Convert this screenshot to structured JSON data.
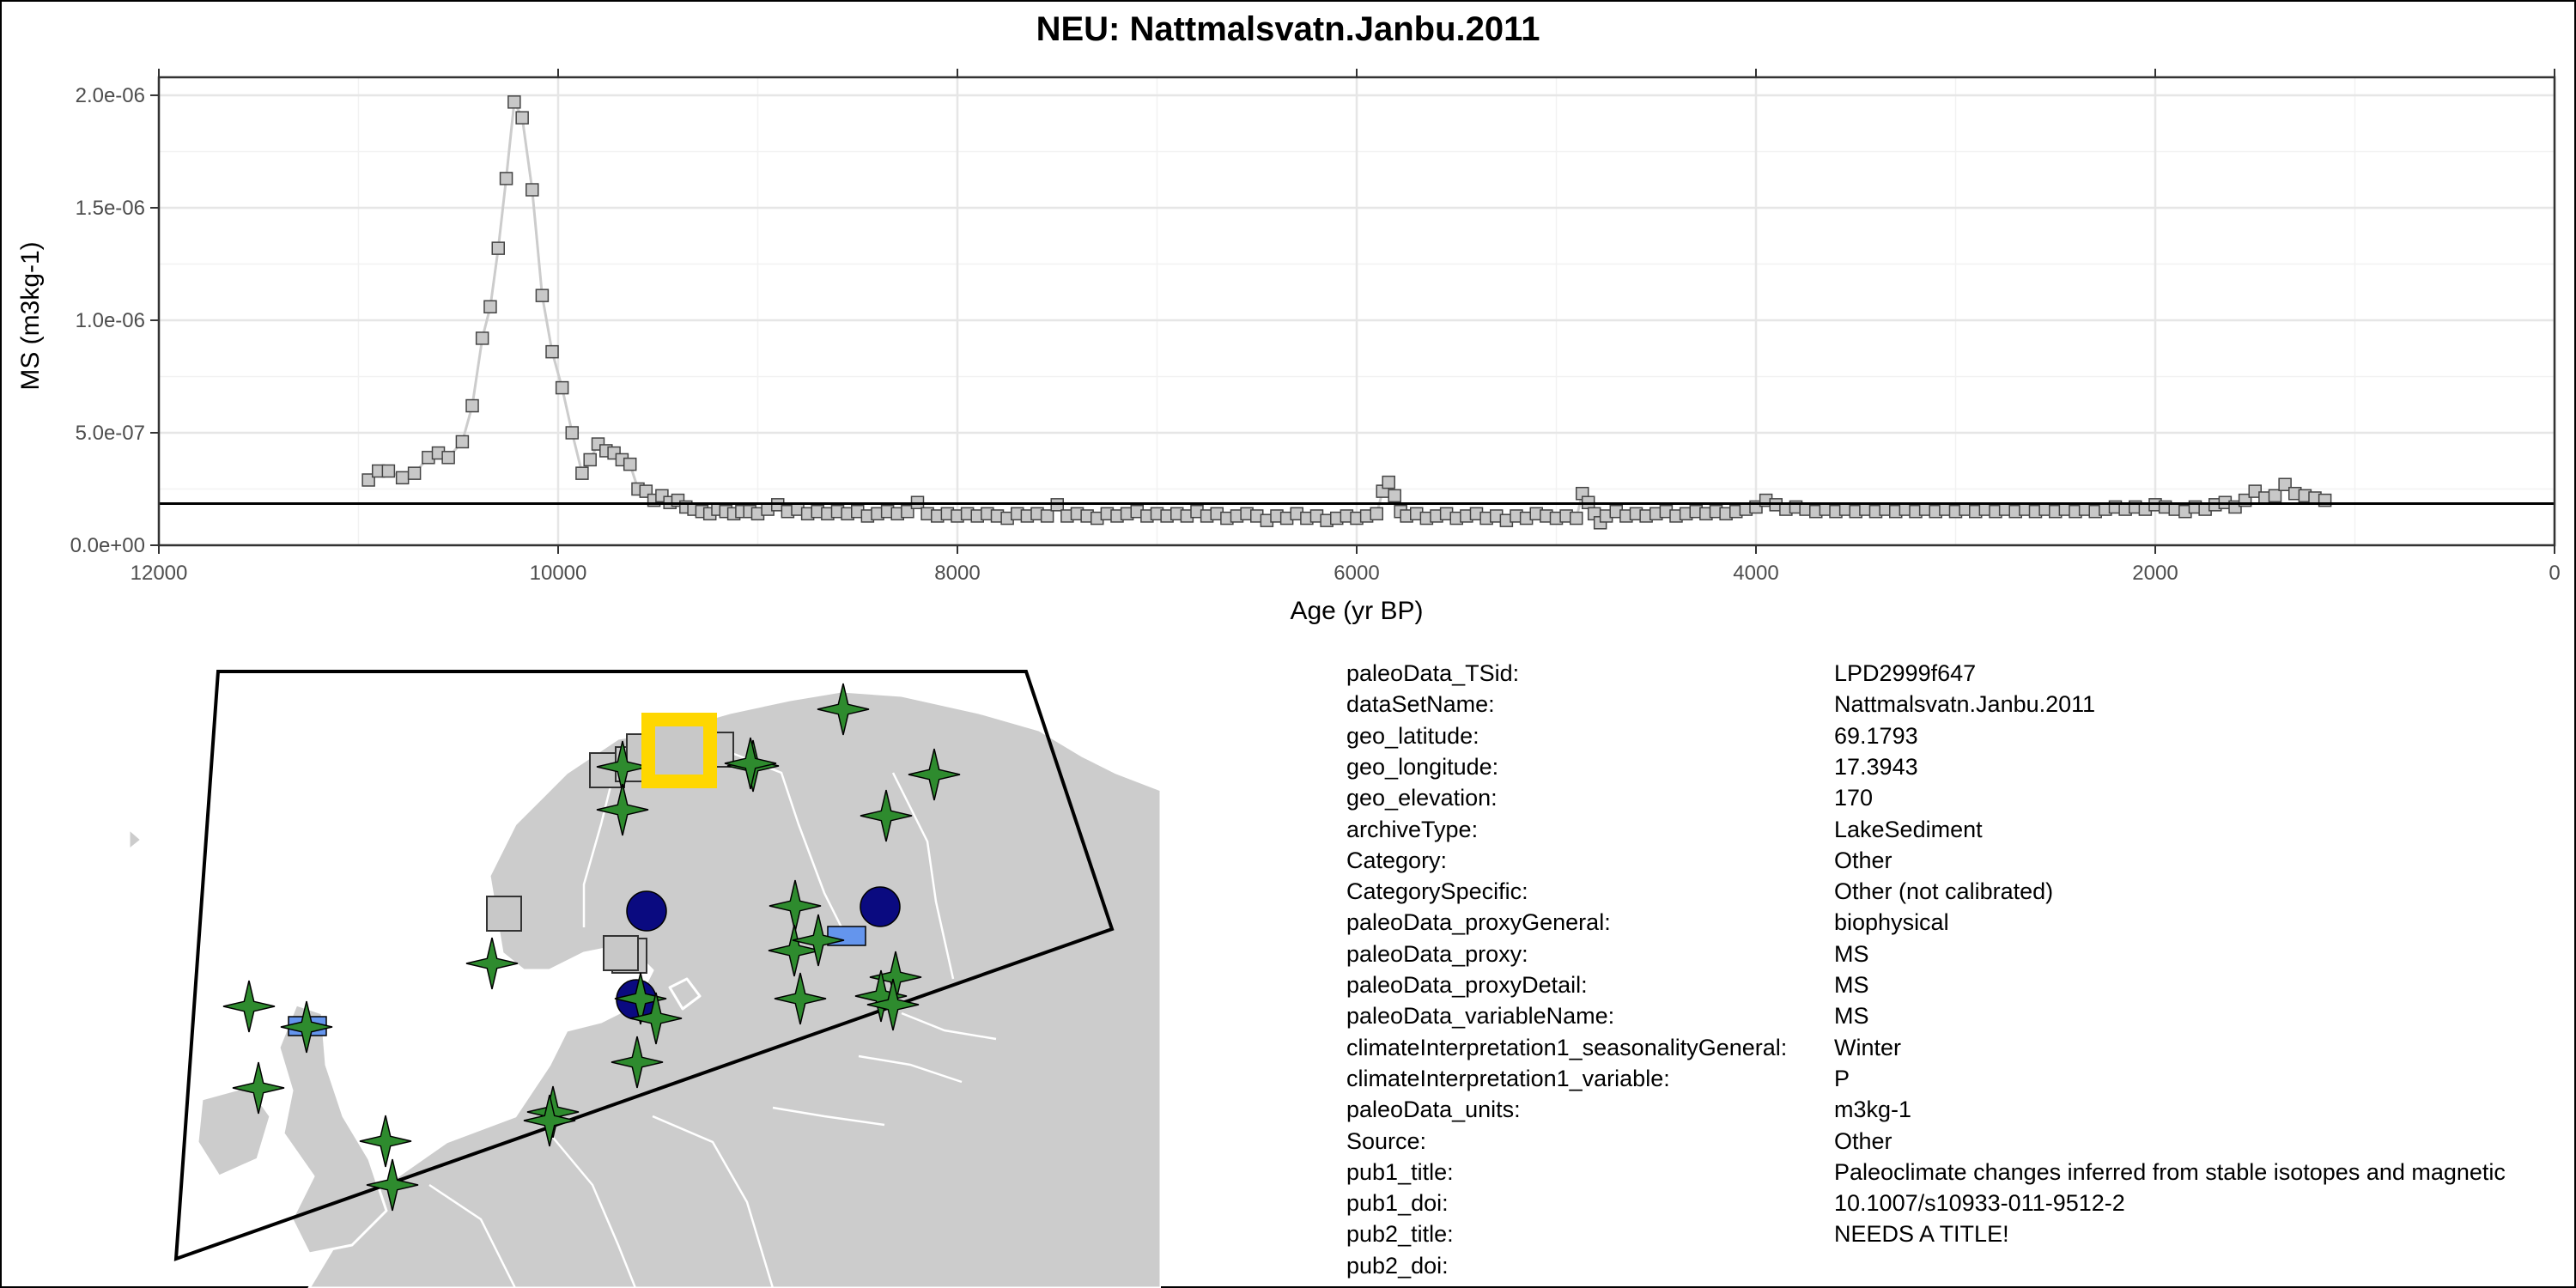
{
  "title": "NEU: Nattmalsvatn.Janbu.2011",
  "chart_data": {
    "type": "line",
    "title": "NEU: Nattmalsvatn.Janbu.2011",
    "xlabel": "Age (yr BP)",
    "ylabel": "MS (m3kg-1)",
    "xlim": [
      12000,
      0
    ],
    "ylim": [
      0,
      2.08e-06
    ],
    "x_reversed": true,
    "x_ticks": [
      12000,
      10000,
      8000,
      6000,
      4000,
      2000,
      0
    ],
    "x_tick_labels": [
      "12000",
      "10000",
      "8000",
      "6000",
      "4000",
      "2000",
      "0"
    ],
    "y_ticks": [
      0,
      5e-07,
      1e-06,
      1.5e-06,
      2e-06
    ],
    "y_tick_labels": [
      "0.0e+00",
      "5.0e-07",
      "1.0e-06",
      "1.5e-06",
      "2.0e-06"
    ],
    "reference_line": 1.85e-07,
    "grid": true,
    "marker": "square",
    "line_color": "#cccccc",
    "marker_fill": "#c8c8c8",
    "marker_edge": "#444444",
    "series": [
      {
        "x": [
          10950,
          10900,
          10850,
          10780,
          10720,
          10650,
          10600,
          10550,
          10480,
          10430,
          10380,
          10340,
          10300,
          10260,
          10220,
          10180,
          10130,
          10080,
          10030,
          9980,
          9930,
          9880,
          9840,
          9800,
          9760,
          9720,
          9680,
          9640,
          9600,
          9560,
          9520,
          9480,
          9440,
          9400,
          9360,
          9320,
          9280,
          9240,
          9200,
          9160,
          9120,
          9080,
          9040,
          9000,
          8950,
          8900,
          8850,
          8800,
          8750,
          8700,
          8650,
          8600,
          8550,
          8500,
          8450,
          8400,
          8350,
          8300,
          8250,
          8200,
          8150,
          8100,
          8050,
          8000,
          7950,
          7900,
          7850,
          7800,
          7750,
          7700,
          7650,
          7600,
          7550,
          7500,
          7450,
          7400,
          7350,
          7300,
          7250,
          7200,
          7150,
          7100,
          7050,
          7000,
          6950,
          6900,
          6850,
          6800,
          6750,
          6700,
          6650,
          6600,
          6550,
          6500,
          6450,
          6400,
          6350,
          6300,
          6250,
          6200,
          6150,
          6100,
          6050,
          6000,
          5950,
          5900,
          5870,
          5840,
          5810,
          5780,
          5750,
          5700,
          5650,
          5600,
          5550,
          5500,
          5450,
          5400,
          5350,
          5300,
          5250,
          5200,
          5150,
          5100,
          5050,
          5000,
          4950,
          4900,
          4870,
          4840,
          4810,
          4780,
          4750,
          4700,
          4650,
          4600,
          4550,
          4500,
          4450,
          4400,
          4350,
          4300,
          4250,
          4200,
          4150,
          4100,
          4050,
          4000,
          3950,
          3900,
          3850,
          3800,
          3750,
          3700,
          3650,
          3600,
          3550,
          3500,
          3450,
          3400,
          3350,
          3300,
          3250,
          3200,
          3150,
          3100,
          3050,
          3000,
          2950,
          2900,
          2850,
          2800,
          2750,
          2700,
          2650,
          2600,
          2550,
          2500,
          2450,
          2400,
          2350,
          2300,
          2250,
          2200,
          2150,
          2100,
          2050,
          2000,
          1950,
          1900,
          1850,
          1800,
          1750,
          1700,
          1650,
          1600,
          1550,
          1500,
          1450,
          1400,
          1350,
          1300,
          1250,
          1200,
          1150
        ],
        "y": [
          2.9e-07,
          3.3e-07,
          3.3e-07,
          3e-07,
          3.2e-07,
          3.9e-07,
          4.1e-07,
          3.9e-07,
          4.6e-07,
          6.2e-07,
          9.2e-07,
          1.06e-06,
          1.32e-06,
          1.63e-06,
          1.97e-06,
          1.9e-06,
          1.58e-06,
          1.11e-06,
          8.6e-07,
          7e-07,
          5e-07,
          3.2e-07,
          3.8e-07,
          4.5e-07,
          4.2e-07,
          4.1e-07,
          3.8e-07,
          3.6e-07,
          2.5e-07,
          2.4e-07,
          2e-07,
          2.2e-07,
          1.9e-07,
          2e-07,
          1.7e-07,
          1.6e-07,
          1.5e-07,
          1.4e-07,
          1.6e-07,
          1.5e-07,
          1.4e-07,
          1.5e-07,
          1.5e-07,
          1.4e-07,
          1.6e-07,
          1.8e-07,
          1.5e-07,
          1.6e-07,
          1.4e-07,
          1.5e-07,
          1.4e-07,
          1.5e-07,
          1.4e-07,
          1.5e-07,
          1.3e-07,
          1.4e-07,
          1.5e-07,
          1.4e-07,
          1.5e-07,
          1.9e-07,
          1.4e-07,
          1.3e-07,
          1.4e-07,
          1.3e-07,
          1.4e-07,
          1.3e-07,
          1.4e-07,
          1.3e-07,
          1.2e-07,
          1.4e-07,
          1.3e-07,
          1.4e-07,
          1.3e-07,
          1.8e-07,
          1.3e-07,
          1.4e-07,
          1.3e-07,
          1.2e-07,
          1.4e-07,
          1.3e-07,
          1.4e-07,
          1.5e-07,
          1.3e-07,
          1.4e-07,
          1.3e-07,
          1.4e-07,
          1.3e-07,
          1.5e-07,
          1.3e-07,
          1.4e-07,
          1.2e-07,
          1.3e-07,
          1.4e-07,
          1.3e-07,
          1.1e-07,
          1.3e-07,
          1.2e-07,
          1.4e-07,
          1.2e-07,
          1.3e-07,
          1.1e-07,
          1.2e-07,
          1.3e-07,
          1.2e-07,
          1.3e-07,
          1.4e-07,
          2.4e-07,
          2.8e-07,
          2.2e-07,
          1.5e-07,
          1.3e-07,
          1.4e-07,
          1.2e-07,
          1.3e-07,
          1.4e-07,
          1.2e-07,
          1.3e-07,
          1.4e-07,
          1.2e-07,
          1.3e-07,
          1.1e-07,
          1.3e-07,
          1.2e-07,
          1.4e-07,
          1.3e-07,
          1.2e-07,
          1.3e-07,
          1.2e-07,
          2.3e-07,
          1.9e-07,
          1.4e-07,
          1e-07,
          1.3e-07,
          1.5e-07,
          1.3e-07,
          1.4e-07,
          1.3e-07,
          1.4e-07,
          1.5e-07,
          1.3e-07,
          1.4e-07,
          1.5e-07,
          1.4e-07,
          1.5e-07,
          1.4e-07,
          1.5e-07,
          1.6e-07,
          1.7e-07,
          2e-07,
          1.8e-07,
          1.6e-07,
          1.7e-07,
          1.6e-07,
          1.5e-07,
          1.6e-07,
          1.5e-07,
          1.6e-07,
          1.5e-07,
          1.6e-07,
          1.5e-07,
          1.6e-07,
          1.5e-07,
          1.6e-07,
          1.5e-07,
          1.6e-07,
          1.5e-07,
          1.6e-07,
          1.5e-07,
          1.6e-07,
          1.5e-07,
          1.6e-07,
          1.5e-07,
          1.6e-07,
          1.5e-07,
          1.6e-07,
          1.5e-07,
          1.6e-07,
          1.5e-07,
          1.6e-07,
          1.5e-07,
          1.6e-07,
          1.5e-07,
          1.6e-07,
          1.7e-07,
          1.6e-07,
          1.7e-07,
          1.6e-07,
          1.8e-07,
          1.7e-07,
          1.6e-07,
          1.5e-07,
          1.7e-07,
          1.6e-07,
          1.8e-07,
          1.9e-07,
          1.7e-07,
          2e-07,
          2.4e-07,
          2.1e-07,
          2.2e-07,
          2.7e-07,
          2.3e-07,
          2.2e-07,
          2.1e-07,
          2e-07
        ]
      }
    ]
  },
  "map": {
    "land_color": "#cccccc",
    "border_color": "#ffffff",
    "highlight_color": "#ffd700",
    "legend_colors": {
      "star": "#2e8b2e",
      "square": "#c8c8c8",
      "circle": "#0a0a80",
      "rect": "#6495ed"
    }
  },
  "metadata": [
    {
      "key": "paleoData_TSid:",
      "value": "LPD2999f647"
    },
    {
      "key": "dataSetName:",
      "value": "Nattmalsvatn.Janbu.2011"
    },
    {
      "key": "geo_latitude:",
      "value": "69.1793"
    },
    {
      "key": "geo_longitude:",
      "value": "17.3943"
    },
    {
      "key": "geo_elevation:",
      "value": "170"
    },
    {
      "key": "archiveType:",
      "value": "LakeSediment"
    },
    {
      "key": "Category:",
      "value": "Other"
    },
    {
      "key": "CategorySpecific:",
      "value": "Other (not calibrated)"
    },
    {
      "key": "paleoData_proxyGeneral:",
      "value": "biophysical"
    },
    {
      "key": "paleoData_proxy:",
      "value": "MS"
    },
    {
      "key": "paleoData_proxyDetail:",
      "value": "MS"
    },
    {
      "key": "paleoData_variableName:",
      "value": "MS"
    },
    {
      "key": "climateInterpretation1_seasonalityGeneral:",
      "value": "Winter"
    },
    {
      "key": "climateInterpretation1_variable:",
      "value": "P"
    },
    {
      "key": "paleoData_units:",
      "value": "m3kg-1"
    },
    {
      "key": "Source:",
      "value": "Other"
    },
    {
      "key": "pub1_title:",
      "value": "Paleoclimate changes inferred from stable isotopes and magnetic"
    },
    {
      "key": "pub1_doi:",
      "value": "10.1007/s10933-011-9512-2"
    },
    {
      "key": "pub2_title:",
      "value": "NEEDS A TITLE!"
    },
    {
      "key": "pub2_doi:",
      "value": ""
    }
  ]
}
